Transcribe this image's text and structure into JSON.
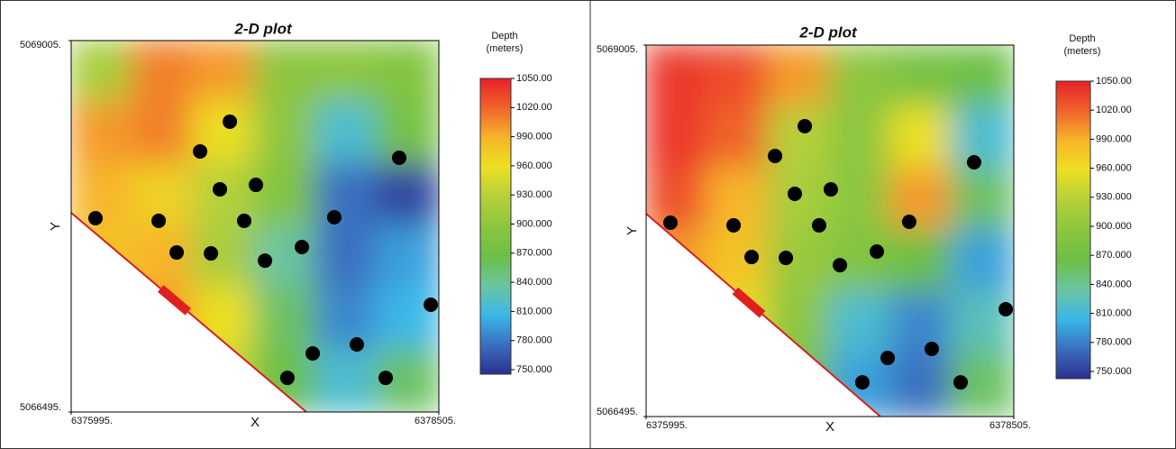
{
  "chart_data": [
    {
      "type": "heatmap",
      "title": "2-D plot",
      "xlabel": "X",
      "ylabel": "Y",
      "colorbar_title": [
        "Depth",
        "(meters)"
      ],
      "xlim": [
        6375995,
        6378505
      ],
      "ylim": [
        5066495,
        5069005
      ],
      "xticks": [
        {
          "value": 6375995,
          "label": "6375995."
        },
        {
          "value": 6378505,
          "label": "6378505."
        }
      ],
      "yticks": [
        {
          "value": 5066495,
          "label": "5066495."
        },
        {
          "value": 5069005,
          "label": "5069005."
        }
      ],
      "zlim": [
        750,
        1050
      ],
      "zticks": [
        {
          "value": 1050,
          "label": "1050.00"
        },
        {
          "value": 1020,
          "label": "1020.00"
        },
        {
          "value": 990,
          "label": "990.000"
        },
        {
          "value": 960,
          "label": "960.000"
        },
        {
          "value": 930,
          "label": "930.000"
        },
        {
          "value": 900,
          "label": "900.000"
        },
        {
          "value": 870,
          "label": "870.000"
        },
        {
          "value": 840,
          "label": "840.000"
        },
        {
          "value": 810,
          "label": "810.000"
        },
        {
          "value": 780,
          "label": "780.000"
        },
        {
          "value": 750,
          "label": "750.000"
        }
      ],
      "colorscale": [
        "#2b2f8f",
        "#3a6fc0",
        "#3ab8e8",
        "#6cc4a0",
        "#6cbf45",
        "#8cc63f",
        "#b5d03a",
        "#ece022",
        "#f7b52b",
        "#f0642a",
        "#e8202a"
      ],
      "z": [
        [
          920,
          1010,
          1000,
          900,
          900,
          890
        ],
        [
          1000,
          1010,
          960,
          900,
          820,
          880
        ],
        [
          990,
          970,
          930,
          890,
          780,
          760
        ],
        [
          980,
          990,
          920,
          840,
          780,
          800
        ],
        [
          960,
          1000,
          960,
          860,
          790,
          810
        ],
        [
          950,
          970,
          940,
          870,
          820,
          860
        ]
      ],
      "points": {
        "color": "#000000",
        "x": [
          6377078,
          6376875,
          6377010,
          6377256,
          6376161,
          6376592,
          6377176,
          6377791,
          6378234,
          6376715,
          6376949,
          6377318,
          6377570,
          6378450,
          6377945,
          6377644,
          6377471,
          6378142
        ],
        "y": [
          5068457,
          5068256,
          5068000,
          5068030,
          5067805,
          5067787,
          5067787,
          5067811,
          5068213,
          5067573,
          5067567,
          5067518,
          5067610,
          5067220,
          5066952,
          5066891,
          5066726,
          5066726
        ]
      }
    },
    {
      "type": "heatmap",
      "title": "2-D plot",
      "xlabel": "X",
      "ylabel": "Y",
      "colorbar_title": [
        "Depth",
        "(meters)"
      ],
      "xlim": [
        6375995,
        6378505
      ],
      "ylim": [
        5066495,
        5069005
      ],
      "xticks": [
        {
          "value": 6375995,
          "label": "6375995."
        },
        {
          "value": 6378505,
          "label": "6378505."
        }
      ],
      "yticks": [
        {
          "value": 5066495,
          "label": "5066495."
        },
        {
          "value": 5069005,
          "label": "5069005."
        }
      ],
      "zlim": [
        750,
        1050
      ],
      "zticks": [
        {
          "value": 1050,
          "label": "1050.00"
        },
        {
          "value": 1020,
          "label": "1020.00"
        },
        {
          "value": 990,
          "label": "990.000"
        },
        {
          "value": 960,
          "label": "960.000"
        },
        {
          "value": 930,
          "label": "930.000"
        },
        {
          "value": 900,
          "label": "900.000"
        },
        {
          "value": 870,
          "label": "870.000"
        },
        {
          "value": 840,
          "label": "840.000"
        },
        {
          "value": 810,
          "label": "810.000"
        },
        {
          "value": 780,
          "label": "780.000"
        },
        {
          "value": 750,
          "label": "750.000"
        }
      ],
      "colorscale": [
        "#2b2f8f",
        "#3a6fc0",
        "#3ab8e8",
        "#6cc4a0",
        "#6cbf45",
        "#8cc63f",
        "#b5d03a",
        "#ece022",
        "#f7b52b",
        "#f0642a",
        "#e8202a"
      ],
      "z": [
        [
          1040,
          1030,
          1000,
          900,
          880,
          870
        ],
        [
          1040,
          1020,
          930,
          900,
          960,
          820
        ],
        [
          1030,
          990,
          920,
          900,
          1000,
          860
        ],
        [
          1000,
          980,
          910,
          890,
          870,
          800
        ],
        [
          990,
          960,
          900,
          820,
          790,
          830
        ],
        [
          980,
          940,
          880,
          800,
          780,
          860
        ]
      ],
      "points": {
        "color": "#000000",
        "x": [
          6377078,
          6376875,
          6377010,
          6377256,
          6376161,
          6376592,
          6377176,
          6377791,
          6378234,
          6376715,
          6376949,
          6377318,
          6377570,
          6378450,
          6377945,
          6377644,
          6377471,
          6378142
        ],
        "y": [
          5068457,
          5068256,
          5068000,
          5068030,
          5067805,
          5067787,
          5067787,
          5067811,
          5068213,
          5067573,
          5067567,
          5067518,
          5067610,
          5067220,
          5066952,
          5066891,
          5066726,
          5066726
        ]
      }
    }
  ]
}
